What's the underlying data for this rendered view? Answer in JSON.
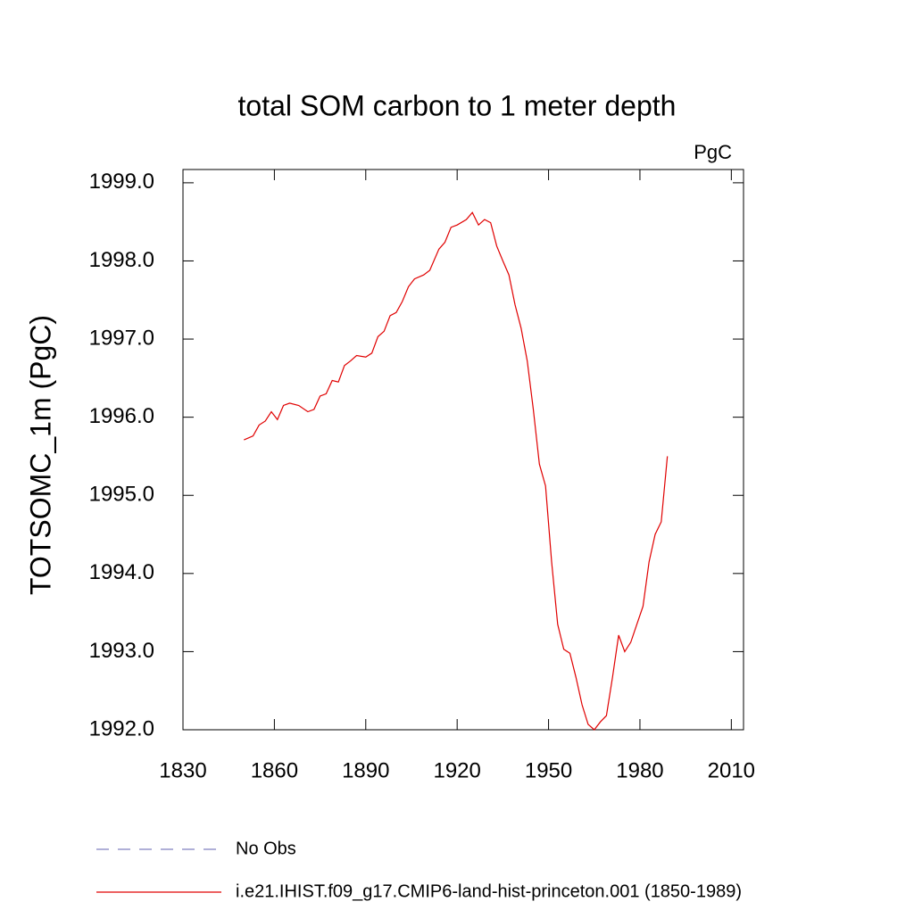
{
  "chart_data": {
    "type": "line",
    "title": "total SOM carbon to 1 meter depth",
    "units_label": "PgC",
    "y_label": "TOTSOMC_1m  (PgC)",
    "x": [
      1850,
      1853,
      1855,
      1857,
      1859,
      1861,
      1863,
      1865,
      1868,
      1871,
      1873,
      1875,
      1877,
      1879,
      1881,
      1883,
      1885,
      1887,
      1890,
      1892,
      1894,
      1896,
      1898,
      1900,
      1902,
      1904,
      1906,
      1909,
      1911,
      1914,
      1916,
      1918,
      1920,
      1923,
      1925,
      1927,
      1929,
      1931,
      1933,
      1935,
      1937,
      1939,
      1941,
      1943,
      1945,
      1947,
      1949,
      1951,
      1953,
      1955,
      1957,
      1959,
      1961,
      1963,
      1965,
      1967,
      1969,
      1971,
      1973,
      1975,
      1977,
      1979,
      1981,
      1983,
      1985,
      1987,
      1989
    ],
    "series": [
      {
        "name": "No Obs",
        "color": "#8080c0",
        "dashed": true,
        "values": [
          null,
          null,
          null,
          null,
          null,
          null,
          null,
          null,
          null,
          null,
          null,
          null,
          null,
          null,
          null,
          null,
          null,
          null,
          null,
          null,
          null,
          null,
          null,
          null,
          null,
          null,
          null,
          null,
          null,
          null,
          null,
          null,
          null,
          null,
          null,
          null,
          null,
          null,
          null,
          null,
          null,
          null,
          null,
          null,
          null,
          null,
          null,
          null,
          null,
          null,
          null,
          null,
          null,
          null,
          null,
          null,
          null,
          null,
          null,
          null,
          null,
          null,
          null,
          null,
          null,
          null,
          null
        ]
      },
      {
        "name": "i.e21.IHIST.f09_g17.CMIP6-land-hist-princeton.001 (1850-1989)",
        "color": "#e00000",
        "dashed": false,
        "values": [
          1995.71,
          1995.76,
          1995.9,
          1995.95,
          1996.07,
          1995.97,
          1996.15,
          1996.18,
          1996.15,
          1996.07,
          1996.1,
          1996.27,
          1996.3,
          1996.47,
          1996.45,
          1996.66,
          1996.72,
          1996.79,
          1996.77,
          1996.82,
          1997.03,
          1997.1,
          1997.3,
          1997.34,
          1997.48,
          1997.67,
          1997.77,
          1997.82,
          1997.88,
          1998.15,
          1998.24,
          1998.43,
          1998.46,
          1998.53,
          1998.62,
          1998.46,
          1998.53,
          1998.49,
          1998.19,
          1998.0,
          1997.82,
          1997.44,
          1997.14,
          1996.72,
          1996.1,
          1995.4,
          1995.12,
          1994.15,
          1993.35,
          1993.03,
          1992.98,
          1992.67,
          1992.32,
          1992.07,
          1992.0,
          1992.1,
          1992.18,
          1992.67,
          1993.21,
          1993.0,
          1993.12,
          1993.35,
          1993.58,
          1994.15,
          1994.5,
          1994.66,
          1995.5
        ]
      }
    ],
    "xlim": [
      1830,
      2014
    ],
    "xticks": [
      1830,
      1860,
      1890,
      1920,
      1950,
      1980,
      2010
    ],
    "ylim": [
      1992.0,
      1999.17
    ],
    "yticks": [
      {
        "value": 1992,
        "label": "1992.0"
      },
      {
        "value": 1993,
        "label": "1993.0"
      },
      {
        "value": 1994,
        "label": "1994.0"
      },
      {
        "value": 1995,
        "label": "1995.0"
      },
      {
        "value": 1996,
        "label": "1996.0"
      },
      {
        "value": 1997,
        "label": "1997.0"
      },
      {
        "value": 1998,
        "label": "1998.0"
      },
      {
        "value": 1999,
        "label": "1999.0"
      }
    ]
  }
}
